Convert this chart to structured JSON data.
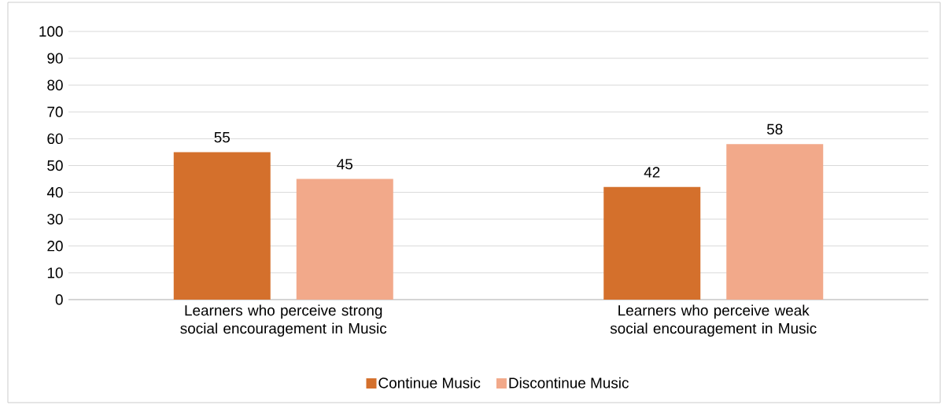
{
  "chart_data": {
    "type": "bar",
    "categories": [
      "Learners who perceive strong social encouragement in Music",
      "Learners who perceive weak social encouragement in Music"
    ],
    "series": [
      {
        "name": "Continue Music",
        "color": "#d4702c",
        "values": [
          55,
          42
        ]
      },
      {
        "name": "Discontinue Music",
        "color": "#f2a98a",
        "values": [
          45,
          58
        ]
      }
    ],
    "ylim": [
      0,
      100
    ],
    "yticks": [
      0,
      10,
      20,
      30,
      40,
      50,
      60,
      70,
      80,
      90,
      100
    ],
    "grid": "y",
    "legend": "bottom",
    "data_labels": true
  }
}
